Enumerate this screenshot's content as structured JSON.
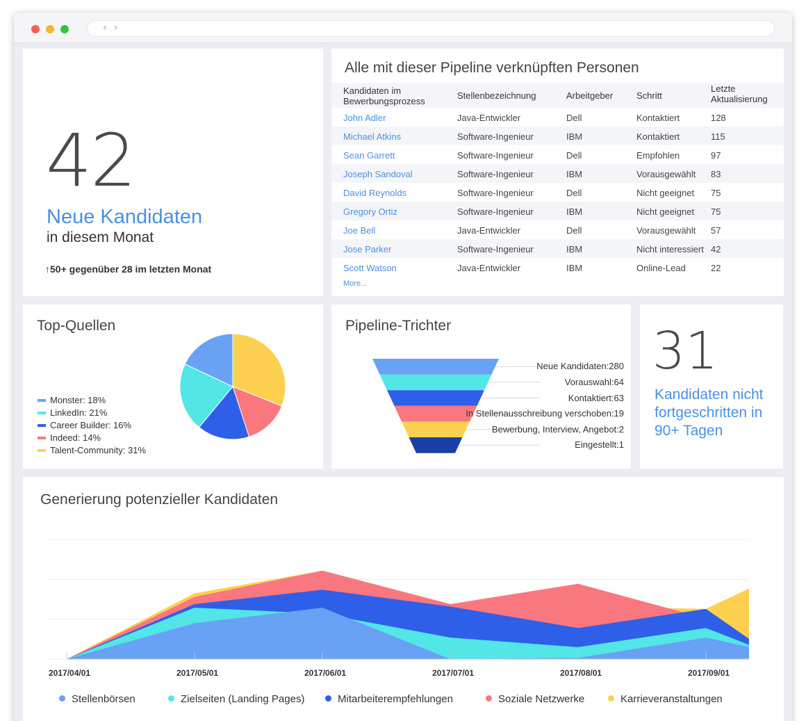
{
  "kpi_new": {
    "value": "42",
    "label": "Neue Kandidaten",
    "sublabel": "in diesem Monat",
    "delta": "↑50+ gegenüber 28 im letzten Monat"
  },
  "table": {
    "title": "Alle mit dieser Pipeline verknüpften Personen",
    "columns": [
      "Kandidaten im Bewerbungsprozess",
      "Stellenbezeichnung",
      "Arbeitgeber",
      "Schritt",
      "Letzte Aktualisierung"
    ],
    "rows": [
      [
        "John Adler",
        "Java-Entwickler",
        "Dell",
        "Kontaktiert",
        "128"
      ],
      [
        "Michael Atkins",
        "Software-Ingenieur",
        "IBM",
        "Kontaktiert",
        "115"
      ],
      [
        "Sean Garrett",
        "Software-Ingenieur",
        "Dell",
        "Empfohlen",
        "97"
      ],
      [
        "Joseph Sandoval",
        "Software-Ingenieur",
        "IBM",
        "Vorausgewählt",
        "83"
      ],
      [
        "David Reynolds",
        "Software-Ingenieur",
        "Dell",
        "Nicht geeignet",
        "75"
      ],
      [
        "Gregory Ortiz",
        "Software-Ingenieur",
        "IBM",
        "Nicht geeignet",
        "75"
      ],
      [
        "Joe Bell",
        "Java-Entwickler",
        "Dell",
        "Vorausgewählt",
        "57"
      ],
      [
        "Jose Parker",
        "Software-Ingenieur",
        "IBM",
        "Nicht interessiert",
        "42"
      ],
      [
        "Scott Watson",
        "Java-Entwickler",
        "IBM",
        "Online-Lead",
        "22"
      ]
    ],
    "more_label": "More..."
  },
  "sources": {
    "title": "Top-Quellen",
    "legend": [
      {
        "label": "Monster: 18%",
        "color": "#69a1f5"
      },
      {
        "label": "LinkedIn: 21%",
        "color": "#52e6e6"
      },
      {
        "label": "Career Builder: 16%",
        "color": "#2f5fe8"
      },
      {
        "label": "Indeed: 14%",
        "color": "#f9777f"
      },
      {
        "label": "Talent-Community: 31%",
        "color": "#fdd14f"
      }
    ]
  },
  "funnel": {
    "title": "Pipeline-Trichter",
    "stages": [
      {
        "label": "Neue Kandidaten:280",
        "color": "#69a1f5"
      },
      {
        "label": "Vorauswahl:64",
        "color": "#52e6e6"
      },
      {
        "label": "Kontaktiert:63",
        "color": "#2f5fe8"
      },
      {
        "label": "In Stellenausschreibung verschoben:19",
        "color": "#f9777f"
      },
      {
        "label": "Bewerbung, Interview, Angebot:2",
        "color": "#fdd14f"
      },
      {
        "label": "Eingestellt:1",
        "color": "#1a3fa8"
      }
    ]
  },
  "kpi_stale": {
    "value": "31",
    "label": "Kandidaten nicht fortgeschritten in 90+ Tagen"
  },
  "area": {
    "title": "Generierung potenzieller Kandidaten",
    "x_labels": [
      "2017/04/01",
      "2017/05/01",
      "2017/06/01",
      "2017/07/01",
      "2017/08/01",
      "2017/09/01"
    ]
  },
  "chart_data": [
    {
      "type": "pie",
      "title": "Top-Quellen",
      "categories": [
        "Monster",
        "LinkedIn",
        "Career Builder",
        "Indeed",
        "Talent-Community"
      ],
      "values": [
        18,
        21,
        16,
        14,
        31
      ],
      "colors": [
        "#69a1f5",
        "#52e6e6",
        "#2f5fe8",
        "#f9777f",
        "#fdd14f"
      ],
      "legend": "left"
    },
    {
      "type": "bar",
      "title": "Pipeline-Trichter",
      "categories": [
        "Neue Kandidaten",
        "Vorauswahl",
        "Kontaktiert",
        "In Stellenausschreibung verschoben",
        "Bewerbung, Interview, Angebot",
        "Eingestellt"
      ],
      "values": [
        280,
        64,
        63,
        19,
        2,
        1
      ],
      "colors": [
        "#69a1f5",
        "#52e6e6",
        "#2f5fe8",
        "#f9777f",
        "#fdd14f",
        "#1a3fa8"
      ]
    },
    {
      "type": "area",
      "title": "Generierung potenzieller Kandidaten",
      "stacked": false,
      "x": [
        "2017/04/01",
        "2017/05/01",
        "2017/06/01",
        "2017/07/01",
        "2017/08/01",
        "2017/09/01",
        "2017/09/15"
      ],
      "ylim": [
        0,
        100
      ],
      "grid": true,
      "legend": "bottom",
      "series": [
        {
          "name": "Karrieveranstaltungen",
          "color": "#fdd14f",
          "values": [
            0,
            55,
            74,
            46,
            44,
            42,
            59
          ]
        },
        {
          "name": "Soziale Netzwerke",
          "color": "#f9777f",
          "values": [
            0,
            52,
            74,
            46,
            63,
            34,
            17
          ]
        },
        {
          "name": "Mitarbeiterempfehlungen",
          "color": "#2f5fe8",
          "values": [
            0,
            46,
            58,
            44,
            26,
            42,
            17
          ]
        },
        {
          "name": "Zielseiten (Landing Pages)",
          "color": "#52e6e6",
          "values": [
            0,
            43,
            38,
            18,
            10,
            26,
            12
          ]
        },
        {
          "name": "Stellenbörsen",
          "color": "#69a1f5",
          "values": [
            0,
            30,
            43,
            0,
            1,
            18,
            10
          ]
        }
      ]
    }
  ]
}
